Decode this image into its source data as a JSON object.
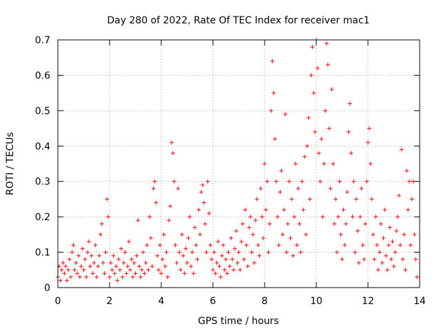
{
  "chart_data": {
    "type": "scatter",
    "title": "Day 280 of 2022, Rate Of TEC Index for receiver mac1",
    "xlabel": "GPS time / hours",
    "ylabel": "ROTI / TECUs",
    "xlim": [
      0,
      14
    ],
    "ylim": [
      0,
      0.7
    ],
    "x_ticks": [
      0,
      2,
      4,
      6,
      8,
      10,
      12,
      14
    ],
    "y_ticks": [
      0,
      0.1,
      0.2,
      0.3,
      0.4,
      0.5,
      0.6,
      0.7
    ],
    "x_tick_labels": [
      "0",
      "2",
      "4",
      "6",
      "8",
      "10",
      "12",
      "14"
    ],
    "y_tick_labels": [
      "0",
      "0.1",
      "0.2",
      "0.3",
      "0.4",
      "0.5",
      "0.6",
      "0.7"
    ],
    "grid": true,
    "legend": "none",
    "marker": "+",
    "color": "#ff0000",
    "series": [
      {
        "points": [
          [
            0.0,
            0.03
          ],
          [
            0.05,
            0.06
          ],
          [
            0.1,
            0.02
          ],
          [
            0.15,
            0.05
          ],
          [
            0.2,
            0.07
          ],
          [
            0.25,
            0.04
          ],
          [
            0.3,
            0.06
          ],
          [
            0.35,
            0.02
          ],
          [
            0.4,
            0.05
          ],
          [
            0.45,
            0.08
          ],
          [
            0.5,
            0.03
          ],
          [
            0.55,
            0.1
          ],
          [
            0.6,
            0.12
          ],
          [
            0.65,
            0.05
          ],
          [
            0.7,
            0.07
          ],
          [
            0.75,
            0.04
          ],
          [
            0.8,
            0.09
          ],
          [
            0.85,
            0.03
          ],
          [
            0.9,
            0.06
          ],
          [
            0.95,
            0.11
          ],
          [
            1.0,
            0.05
          ],
          [
            1.05,
            0.08
          ],
          [
            1.1,
            0.03
          ],
          [
            1.15,
            0.1
          ],
          [
            1.2,
            0.13
          ],
          [
            1.25,
            0.06
          ],
          [
            1.3,
            0.09
          ],
          [
            1.35,
            0.04
          ],
          [
            1.4,
            0.07
          ],
          [
            1.45,
            0.12
          ],
          [
            1.5,
            0.03
          ],
          [
            1.55,
            0.06
          ],
          [
            1.6,
            0.09
          ],
          [
            1.65,
            0.15
          ],
          [
            1.7,
            0.18
          ],
          [
            1.75,
            0.07
          ],
          [
            1.8,
            0.04
          ],
          [
            1.85,
            0.1
          ],
          [
            1.9,
            0.25
          ],
          [
            1.95,
            0.2
          ],
          [
            2.0,
            0.03
          ],
          [
            2.05,
            0.07
          ],
          [
            2.1,
            0.05
          ],
          [
            2.15,
            0.09
          ],
          [
            2.2,
            0.04
          ],
          [
            2.25,
            0.06
          ],
          [
            2.3,
            0.02
          ],
          [
            2.35,
            0.08
          ],
          [
            2.4,
            0.05
          ],
          [
            2.45,
            0.11
          ],
          [
            2.5,
            0.03
          ],
          [
            2.55,
            0.07
          ],
          [
            2.6,
            0.1
          ],
          [
            2.65,
            0.04
          ],
          [
            2.7,
            0.06
          ],
          [
            2.75,
            0.13
          ],
          [
            2.8,
            0.05
          ],
          [
            2.85,
            0.08
          ],
          [
            2.9,
            0.03
          ],
          [
            2.95,
            0.07
          ],
          [
            3.0,
            0.04
          ],
          [
            3.05,
            0.09
          ],
          [
            3.1,
            0.19
          ],
          [
            3.15,
            0.06
          ],
          [
            3.2,
            0.03
          ],
          [
            3.25,
            0.05
          ],
          [
            3.3,
            0.1
          ],
          [
            3.35,
            0.04
          ],
          [
            3.4,
            0.07
          ],
          [
            3.45,
            0.12
          ],
          [
            3.5,
            0.05
          ],
          [
            3.55,
            0.2
          ],
          [
            3.6,
            0.14
          ],
          [
            3.65,
            0.06
          ],
          [
            3.7,
            0.28
          ],
          [
            3.75,
            0.3
          ],
          [
            3.8,
            0.24
          ],
          [
            3.85,
            0.09
          ],
          [
            3.9,
            0.05
          ],
          [
            3.95,
            0.12
          ],
          [
            4.0,
            0.04
          ],
          [
            4.05,
            0.08
          ],
          [
            4.1,
            0.15
          ],
          [
            4.15,
            0.06
          ],
          [
            4.2,
            0.1
          ],
          [
            4.25,
            0.03
          ],
          [
            4.3,
            0.19
          ],
          [
            4.35,
            0.23
          ],
          [
            4.4,
            0.41
          ],
          [
            4.45,
            0.38
          ],
          [
            4.5,
            0.3
          ],
          [
            4.55,
            0.12
          ],
          [
            4.6,
            0.07
          ],
          [
            4.65,
            0.28
          ],
          [
            4.7,
            0.1
          ],
          [
            4.75,
            0.05
          ],
          [
            4.8,
            0.15
          ],
          [
            4.85,
            0.09
          ],
          [
            4.9,
            0.04
          ],
          [
            4.95,
            0.11
          ],
          [
            5.0,
            0.07
          ],
          [
            5.05,
            0.14
          ],
          [
            5.1,
            0.2
          ],
          [
            5.15,
            0.06
          ],
          [
            5.2,
            0.1
          ],
          [
            5.25,
            0.04
          ],
          [
            5.3,
            0.17
          ],
          [
            5.35,
            0.12
          ],
          [
            5.4,
            0.08
          ],
          [
            5.45,
            0.22
          ],
          [
            5.5,
            0.15
          ],
          [
            5.55,
            0.27
          ],
          [
            5.6,
            0.29
          ],
          [
            5.65,
            0.24
          ],
          [
            5.7,
            0.18
          ],
          [
            5.75,
            0.1
          ],
          [
            5.8,
            0.3
          ],
          [
            5.85,
            0.21
          ],
          [
            5.9,
            0.12
          ],
          [
            5.95,
            0.08
          ],
          [
            6.0,
            0.05
          ],
          [
            6.05,
            0.1
          ],
          [
            6.1,
            0.04
          ],
          [
            6.15,
            0.07
          ],
          [
            6.2,
            0.13
          ],
          [
            6.25,
            0.06
          ],
          [
            6.3,
            0.03
          ],
          [
            6.35,
            0.09
          ],
          [
            6.4,
            0.12
          ],
          [
            6.45,
            0.05
          ],
          [
            6.5,
            0.08
          ],
          [
            6.55,
            0.04
          ],
          [
            6.6,
            0.1
          ],
          [
            6.65,
            0.06
          ],
          [
            6.7,
            0.14
          ],
          [
            6.75,
            0.08
          ],
          [
            6.8,
            0.05
          ],
          [
            6.85,
            0.11
          ],
          [
            6.9,
            0.16
          ],
          [
            6.95,
            0.07
          ],
          [
            7.0,
            0.1
          ],
          [
            7.05,
            0.05
          ],
          [
            7.1,
            0.13
          ],
          [
            7.15,
            0.18
          ],
          [
            7.2,
            0.08
          ],
          [
            7.25,
            0.22
          ],
          [
            7.3,
            0.12
          ],
          [
            7.35,
            0.06
          ],
          [
            7.4,
            0.17
          ],
          [
            7.45,
            0.2
          ],
          [
            7.5,
            0.1
          ],
          [
            7.55,
            0.15
          ],
          [
            7.6,
            0.07
          ],
          [
            7.65,
            0.19
          ],
          [
            7.7,
            0.25
          ],
          [
            7.75,
            0.12
          ],
          [
            7.8,
            0.09
          ],
          [
            7.85,
            0.28
          ],
          [
            7.9,
            0.2
          ],
          [
            7.95,
            0.14
          ],
          [
            8.0,
            0.35
          ],
          [
            8.05,
            0.22
          ],
          [
            8.1,
            0.3
          ],
          [
            8.15,
            0.1
          ],
          [
            8.2,
            0.18
          ],
          [
            8.25,
            0.5
          ],
          [
            8.3,
            0.64
          ],
          [
            8.35,
            0.55
          ],
          [
            8.4,
            0.42
          ],
          [
            8.45,
            0.3
          ],
          [
            8.5,
            0.2
          ],
          [
            8.55,
            0.12
          ],
          [
            8.6,
            0.27
          ],
          [
            8.65,
            0.33
          ],
          [
            8.7,
            0.15
          ],
          [
            8.75,
            0.22
          ],
          [
            8.8,
            0.49
          ],
          [
            8.85,
            0.1
          ],
          [
            8.9,
            0.18
          ],
          [
            8.95,
            0.3
          ],
          [
            9.0,
            0.14
          ],
          [
            9.05,
            0.25
          ],
          [
            9.1,
            0.09
          ],
          [
            9.15,
            0.2
          ],
          [
            9.2,
            0.35
          ],
          [
            9.25,
            0.12
          ],
          [
            9.3,
            0.28
          ],
          [
            9.35,
            0.18
          ],
          [
            9.4,
            0.1
          ],
          [
            9.45,
            0.3
          ],
          [
            9.5,
            0.22
          ],
          [
            9.55,
            0.37
          ],
          [
            9.6,
            0.15
          ],
          [
            9.65,
            0.4
          ],
          [
            9.7,
            0.48
          ],
          [
            9.75,
            0.25
          ],
          [
            9.8,
            0.6
          ],
          [
            9.85,
            0.68
          ],
          [
            9.9,
            0.55
          ],
          [
            9.95,
            0.44
          ],
          [
            10.0,
            0.7
          ],
          [
            10.05,
            0.62
          ],
          [
            10.1,
            0.38
          ],
          [
            10.15,
            0.3
          ],
          [
            10.2,
            0.42
          ],
          [
            10.25,
            0.2
          ],
          [
            10.3,
            0.35
          ],
          [
            10.35,
            0.5
          ],
          [
            10.4,
            0.69
          ],
          [
            10.45,
            0.63
          ],
          [
            10.5,
            0.45
          ],
          [
            10.55,
            0.28
          ],
          [
            10.6,
            0.56
          ],
          [
            10.65,
            0.35
          ],
          [
            10.7,
            0.18
          ],
          [
            10.75,
            0.25
          ],
          [
            10.8,
            0.1
          ],
          [
            10.85,
            0.2
          ],
          [
            10.9,
            0.3
          ],
          [
            10.95,
            0.15
          ],
          [
            11.0,
            0.08
          ],
          [
            11.05,
            0.22
          ],
          [
            11.1,
            0.12
          ],
          [
            11.15,
            0.18
          ],
          [
            11.2,
            0.27
          ],
          [
            11.25,
            0.44
          ],
          [
            11.3,
            0.52
          ],
          [
            11.35,
            0.38
          ],
          [
            11.4,
            0.2
          ],
          [
            11.45,
            0.3
          ],
          [
            11.5,
            0.1
          ],
          [
            11.55,
            0.25
          ],
          [
            11.6,
            0.16
          ],
          [
            11.65,
            0.07
          ],
          [
            11.7,
            0.2
          ],
          [
            11.75,
            0.28
          ],
          [
            11.8,
            0.12
          ],
          [
            11.85,
            0.08
          ],
          [
            11.9,
            0.18
          ],
          [
            11.95,
            0.3
          ],
          [
            12.0,
            0.41
          ],
          [
            12.05,
            0.45
          ],
          [
            12.1,
            0.35
          ],
          [
            12.15,
            0.25
          ],
          [
            12.2,
            0.15
          ],
          [
            12.25,
            0.08
          ],
          [
            12.3,
            0.2
          ],
          [
            12.35,
            0.12
          ],
          [
            12.4,
            0.05
          ],
          [
            12.45,
            0.1
          ],
          [
            12.5,
            0.18
          ],
          [
            12.55,
            0.07
          ],
          [
            12.6,
            0.14
          ],
          [
            12.65,
            0.22
          ],
          [
            12.7,
            0.09
          ],
          [
            12.75,
            0.05
          ],
          [
            12.8,
            0.12
          ],
          [
            12.85,
            0.17
          ],
          [
            12.9,
            0.08
          ],
          [
            12.95,
            0.13
          ],
          [
            13.0,
            0.06
          ],
          [
            13.05,
            0.1
          ],
          [
            13.1,
            0.16
          ],
          [
            13.15,
            0.2
          ],
          [
            13.2,
            0.26
          ],
          [
            13.25,
            0.12
          ],
          [
            13.3,
            0.39
          ],
          [
            13.35,
            0.08
          ],
          [
            13.4,
            0.15
          ],
          [
            13.45,
            0.05
          ],
          [
            13.5,
            0.33
          ],
          [
            13.55,
            0.22
          ],
          [
            13.6,
            0.3
          ],
          [
            13.65,
            0.12
          ],
          [
            13.7,
            0.25
          ],
          [
            13.75,
            0.3
          ],
          [
            13.8,
            0.15
          ],
          [
            13.85,
            0.08
          ],
          [
            13.9,
            0.03
          ]
        ]
      }
    ]
  }
}
